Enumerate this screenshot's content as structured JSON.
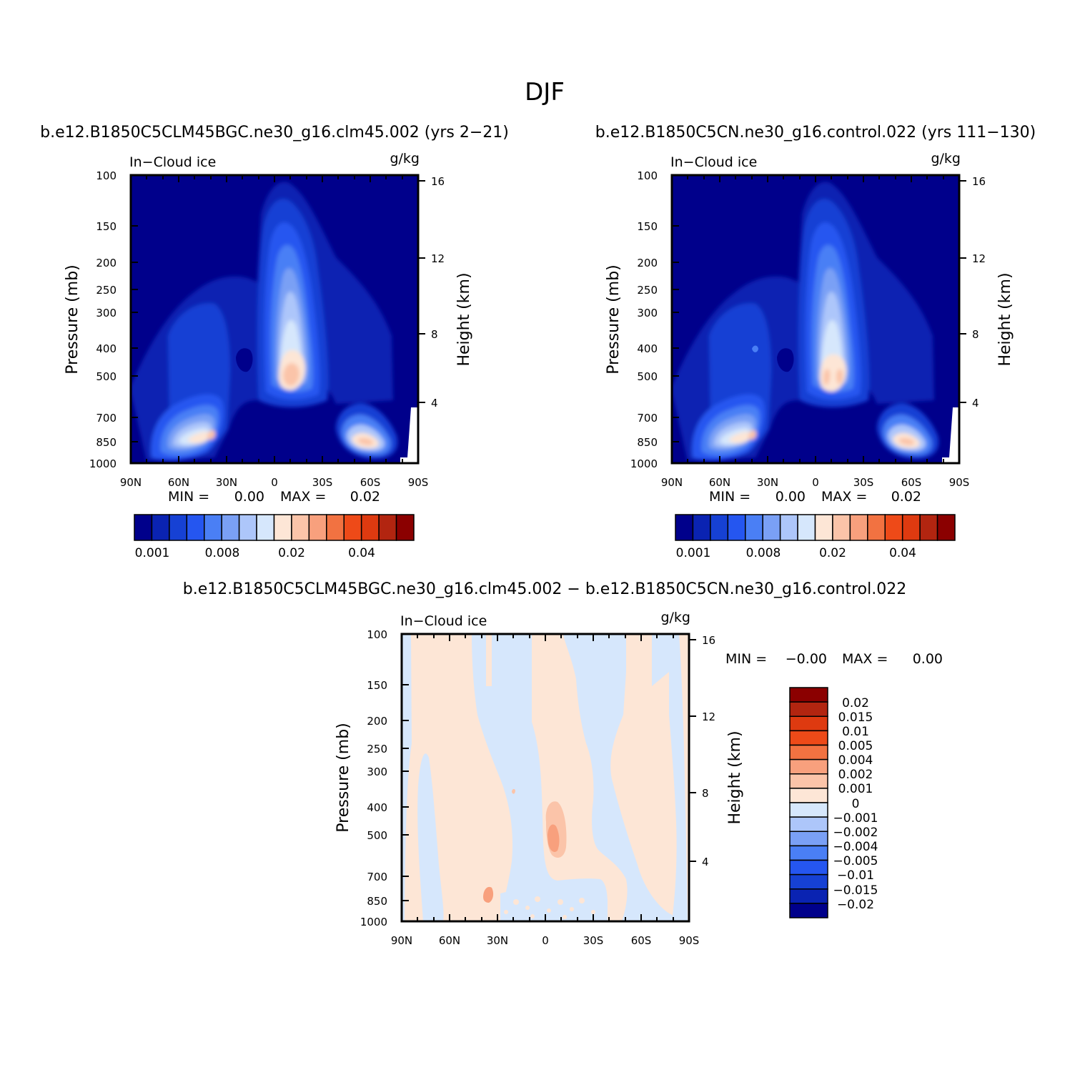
{
  "figure": {
    "title": "DJF"
  },
  "panels": [
    {
      "id": "case1",
      "heading": "b.e12.B1850C5CLM45BGC.ne30_g16.clm45.002 (yrs 2-21)",
      "left_label": "In-Cloud ice",
      "right_label": "g/kg",
      "min_text": "MIN =",
      "min_value": "0.00",
      "max_text": "MAX =",
      "max_value": "0.02",
      "colorbar": {
        "labels": [
          "0.001",
          "0.008",
          "0.02",
          "0.04"
        ]
      }
    },
    {
      "id": "case2",
      "heading": "b.e12.B1850C5CN.ne30_g16.control.022 (yrs 111-130)",
      "left_label": "In-Cloud ice",
      "right_label": "g/kg",
      "min_text": "MIN =",
      "min_value": "0.00",
      "max_text": "MAX =",
      "max_value": "0.02",
      "colorbar": {
        "labels": [
          "0.001",
          "0.008",
          "0.02",
          "0.04"
        ]
      }
    },
    {
      "id": "diff",
      "heading": "b.e12.B1850C5CLM45BGC.ne30_g16.clm45.002 - b.e12.B1850C5CN.ne30_g16.control.022",
      "left_label": "In-Cloud ice",
      "right_label": "g/kg",
      "min_text": "MIN =",
      "min_value": "-0.00",
      "max_text": "MAX =",
      "max_value": "0.00",
      "colorbar": {
        "labels": [
          "0.02",
          "0.015",
          "0.01",
          "0.005",
          "0.004",
          "0.002",
          "0.001",
          "0",
          "-0.001",
          "-0.002",
          "-0.004",
          "-0.005",
          "-0.01",
          "-0.015",
          "-0.02"
        ]
      }
    }
  ],
  "axes": {
    "ylabel_left": "Pressure (mb)",
    "ylabel_right": "Height (km)",
    "pressure_ticks": [
      "100",
      "150",
      "200",
      "250",
      "300",
      "400",
      "500",
      "700",
      "850",
      "1000"
    ],
    "height_ticks": [
      "16",
      "12",
      "8",
      "4"
    ],
    "lat_ticks": [
      "90N",
      "60N",
      "30N",
      "0",
      "30S",
      "60S",
      "90S"
    ]
  },
  "colors": {
    "abs_scale": [
      "#00008b",
      "#0a23b2",
      "#1641d4",
      "#2556f0",
      "#4a7ff5",
      "#7aa0f5",
      "#adc6fa",
      "#d6e7fc",
      "#fde6d6",
      "#fbc4a9",
      "#f8a07d",
      "#f27241",
      "#ee4a18",
      "#de3a10",
      "#b22510",
      "#8b0000"
    ],
    "diff_scale": [
      "#8b0000",
      "#b22510",
      "#de3a10",
      "#ee4a18",
      "#f27241",
      "#f8a07d",
      "#fbc4a9",
      "#fde6d6",
      "#d6e7fc",
      "#adc6fa",
      "#7aa0f5",
      "#4a7ff5",
      "#2556f0",
      "#1641d4",
      "#0a23b2",
      "#00008b"
    ]
  },
  "chart_data": [
    {
      "type": "heatmap",
      "title": "b.e12.B1850C5CLM45BGC.ne30_g16.clm45.002 (yrs 2-21)",
      "xlabel": "",
      "ylabel": "Pressure (mb)",
      "y2label": "Height (km)",
      "x_ticks": [
        "90N",
        "60N",
        "30N",
        "0",
        "30S",
        "60S",
        "90S"
      ],
      "y_ticks": [
        100,
        150,
        200,
        250,
        300,
        400,
        500,
        700,
        850,
        1000
      ],
      "ylim": [
        1000,
        100
      ],
      "y_scale": "log",
      "variable": "In-Cloud ice",
      "units": "g/kg",
      "min": 0.0,
      "max": 0.02,
      "contour_levels": [
        0.001,
        0.002,
        0.004,
        0.006,
        0.008,
        0.01,
        0.012,
        0.016,
        0.02,
        0.024,
        0.028,
        0.032,
        0.036,
        0.04,
        0.045
      ],
      "features": [
        {
          "lat": 5,
          "pressure": 500,
          "value": 0.02
        },
        {
          "lat": 40,
          "pressure": 800,
          "value": 0.02
        },
        {
          "lat": -60,
          "pressure": 850,
          "value": 0.02
        }
      ]
    },
    {
      "type": "heatmap",
      "title": "b.e12.B1850C5CN.ne30_g16.control.022 (yrs 111-130)",
      "xlabel": "",
      "ylabel": "Pressure (mb)",
      "y2label": "Height (km)",
      "x_ticks": [
        "90N",
        "60N",
        "30N",
        "0",
        "30S",
        "60S",
        "90S"
      ],
      "y_ticks": [
        100,
        150,
        200,
        250,
        300,
        400,
        500,
        700,
        850,
        1000
      ],
      "ylim": [
        1000,
        100
      ],
      "y_scale": "log",
      "variable": "In-Cloud ice",
      "units": "g/kg",
      "min": 0.0,
      "max": 0.02,
      "contour_levels": [
        0.001,
        0.002,
        0.004,
        0.006,
        0.008,
        0.01,
        0.012,
        0.016,
        0.02,
        0.024,
        0.028,
        0.032,
        0.036,
        0.04,
        0.045
      ],
      "features": [
        {
          "lat": 5,
          "pressure": 500,
          "value": 0.019
        },
        {
          "lat": 40,
          "pressure": 800,
          "value": 0.02
        },
        {
          "lat": -60,
          "pressure": 850,
          "value": 0.02
        }
      ]
    },
    {
      "type": "heatmap",
      "title": "b.e12.B1850C5CLM45BGC.ne30_g16.clm45.002 - b.e12.B1850C5CN.ne30_g16.control.022",
      "xlabel": "",
      "ylabel": "Pressure (mb)",
      "y2label": "Height (km)",
      "x_ticks": [
        "90N",
        "60N",
        "30N",
        "0",
        "30S",
        "60S",
        "90S"
      ],
      "y_ticks": [
        100,
        150,
        200,
        250,
        300,
        400,
        500,
        700,
        850,
        1000
      ],
      "ylim": [
        1000,
        100
      ],
      "y_scale": "log",
      "variable": "In-Cloud ice",
      "units": "g/kg",
      "min": -0.0,
      "max": 0.0,
      "contour_levels": [
        -0.02,
        -0.015,
        -0.01,
        -0.005,
        -0.004,
        -0.002,
        -0.001,
        0,
        0.001,
        0.002,
        0.004,
        0.005,
        0.01,
        0.015,
        0.02
      ],
      "features": [
        {
          "lat": -5,
          "pressure": 480,
          "value": 0.002
        },
        {
          "lat": 37,
          "pressure": 800,
          "value": 0.002
        }
      ]
    }
  ]
}
